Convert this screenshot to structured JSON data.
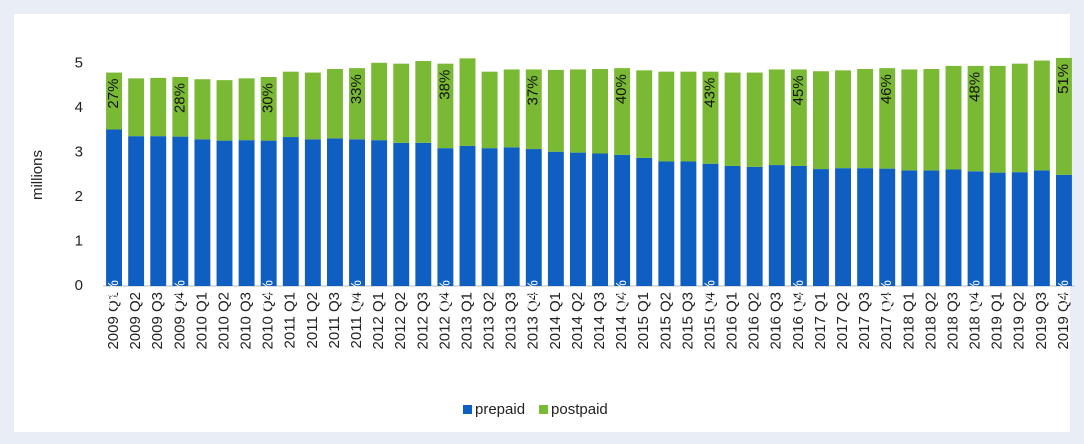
{
  "chart_data": {
    "type": "stacked_bar",
    "y_label": "millions",
    "categories": [
      "2009 Q1",
      "2009 Q2",
      "2009 Q3",
      "2009 Q4",
      "2010 Q1",
      "2010 Q2",
      "2010 Q3",
      "2010 Q4",
      "2011 Q1",
      "2011 Q2",
      "2011 Q3",
      "2011 Q4",
      "2012 Q1",
      "2012 Q2",
      "2012 Q3",
      "2012 Q4",
      "2013 Q1",
      "2013 Q2",
      "2013 Q3",
      "2013 Q4",
      "2014 Q1",
      "2014 Q2",
      "2014 Q3",
      "2014 Q4",
      "2015 Q1",
      "2015 Q2",
      "2015 Q3",
      "2015 Q4",
      "2016 Q1",
      "2016 Q2",
      "2016 Q3",
      "2016 Q4",
      "2017 Q1",
      "2017 Q2",
      "2017 Q3",
      "2017 Q4",
      "2018 Q1",
      "2018 Q2",
      "2018 Q3",
      "2018 Q4",
      "2019 Q1",
      "2019 Q2",
      "2019 Q3",
      "2019 Q4"
    ],
    "series": [
      {
        "name": "prepaid",
        "color": "#0f5fc2",
        "values": [
          3.52,
          3.37,
          3.37,
          3.36,
          3.3,
          3.27,
          3.28,
          3.27,
          3.35,
          3.3,
          3.32,
          3.3,
          3.28,
          3.22,
          3.22,
          3.1,
          3.15,
          3.1,
          3.12,
          3.08,
          3.02,
          3.0,
          2.98,
          2.95,
          2.88,
          2.8,
          2.8,
          2.75,
          2.7,
          2.68,
          2.72,
          2.7,
          2.63,
          2.65,
          2.65,
          2.64,
          2.6,
          2.6,
          2.62,
          2.58,
          2.55,
          2.56,
          2.6,
          2.5
        ],
        "share_labels": [
          "73%",
          null,
          null,
          "72%",
          null,
          null,
          null,
          "70%",
          null,
          null,
          null,
          "67%",
          null,
          null,
          null,
          "62%",
          null,
          null,
          null,
          "63%",
          null,
          null,
          null,
          "60%",
          null,
          null,
          null,
          "57%",
          null,
          null,
          null,
          "55%",
          null,
          null,
          null,
          "54%",
          null,
          null,
          null,
          "52%",
          null,
          null,
          null,
          "49%"
        ]
      },
      {
        "name": "postpaid",
        "color": "#7ab933",
        "values": [
          1.28,
          1.3,
          1.31,
          1.34,
          1.35,
          1.36,
          1.39,
          1.43,
          1.47,
          1.5,
          1.56,
          1.6,
          1.74,
          1.78,
          1.84,
          1.9,
          1.97,
          1.72,
          1.75,
          1.79,
          1.84,
          1.87,
          1.9,
          1.95,
          1.97,
          2.02,
          2.02,
          2.07,
          2.1,
          2.12,
          2.15,
          2.17,
          2.2,
          2.2,
          2.23,
          2.26,
          2.27,
          2.28,
          2.33,
          2.37,
          2.4,
          2.44,
          2.47,
          2.63
        ],
        "share_labels": [
          "27%",
          null,
          null,
          "28%",
          null,
          null,
          null,
          "30%",
          null,
          null,
          null,
          "33%",
          null,
          null,
          null,
          "38%",
          null,
          null,
          null,
          "37%",
          null,
          null,
          null,
          "40%",
          null,
          null,
          null,
          "43%",
          null,
          null,
          null,
          "45%",
          null,
          null,
          null,
          "46%",
          null,
          null,
          null,
          "48%",
          null,
          null,
          null,
          "51%"
        ]
      }
    ],
    "ylim": [
      0,
      5.6
    ],
    "yticks": [
      0,
      1,
      2,
      3,
      4,
      5
    ],
    "grid": false,
    "legend": "bottom"
  }
}
